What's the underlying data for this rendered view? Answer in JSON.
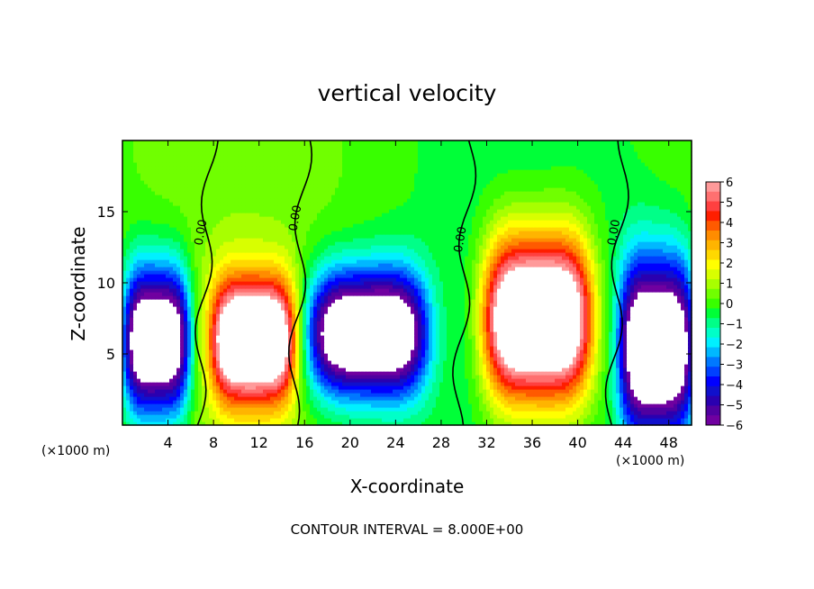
{
  "chart_data": {
    "type": "heatmap",
    "title": "vertical velocity",
    "xlabel": "X-coordinate",
    "ylabel": "Z-coordinate",
    "x_unit_left": "(×1000 m)",
    "x_unit_right": "(×1000 m)",
    "xlim": [
      0,
      50
    ],
    "ylim": [
      0,
      20
    ],
    "x_ticks": [
      4,
      8,
      12,
      16,
      20,
      24,
      28,
      32,
      36,
      40,
      44,
      48
    ],
    "y_ticks": [
      5,
      10,
      15
    ],
    "footer": "CONTOUR INTERVAL = 8.000E+00",
    "colorbar": {
      "range": [
        -6,
        6
      ],
      "tick_values": [
        6,
        5,
        4,
        3,
        2,
        1,
        0,
        -1,
        -2,
        -3,
        -4,
        -5,
        -6
      ],
      "tick_labels": [
        "6",
        "5",
        "4",
        "3",
        "2",
        "1",
        "0",
        "−1",
        "−2",
        "−3",
        "−4",
        "−5",
        "−6"
      ],
      "colors_top_to_bottom": [
        "#ff9a9a",
        "#ff7070",
        "#ff4040",
        "#ff1e00",
        "#ff5a00",
        "#ff8c00",
        "#ffb400",
        "#ffd800",
        "#ffff00",
        "#d8ff00",
        "#a8ff00",
        "#70ff00",
        "#38ff00",
        "#00ff38",
        "#00ff88",
        "#00ffc8",
        "#00f0ff",
        "#00b8ff",
        "#0078ff",
        "#0040ff",
        "#0000ff",
        "#1010cc",
        "#2a00b0",
        "#5000a0",
        "#7000a0"
      ]
    },
    "updrafts": [
      {
        "x_center": 11.5,
        "z_center": 6.0,
        "x_halfwidth": 3.6,
        "z_top": 12.0,
        "peak": 9
      },
      {
        "x_center": 36.5,
        "z_center": 7.5,
        "x_halfwidth": 4.6,
        "z_top": 15.5,
        "peak": 10
      }
    ],
    "downdrafts": [
      {
        "x_center": 3.0,
        "z_center": 6.0,
        "x_halfwidth": 2.8,
        "z_top": 13.0,
        "peak": -9
      },
      {
        "x_center": 21.5,
        "z_center": 6.5,
        "x_halfwidth": 5.0,
        "z_top": 12.5,
        "peak": -9
      },
      {
        "x_center": 47.0,
        "z_center": 5.5,
        "x_halfwidth": 3.2,
        "z_top": 14.0,
        "peak": -9
      }
    ],
    "zero_contour_labels": [
      {
        "text": "0.00",
        "x": 7.2,
        "z": 13.5
      },
      {
        "text": "0.00",
        "x": 15.5,
        "z": 14.5
      },
      {
        "text": "0.00",
        "x": 30.0,
        "z": 13.0
      },
      {
        "text": "0.00",
        "x": 43.5,
        "z": 13.5
      }
    ]
  }
}
